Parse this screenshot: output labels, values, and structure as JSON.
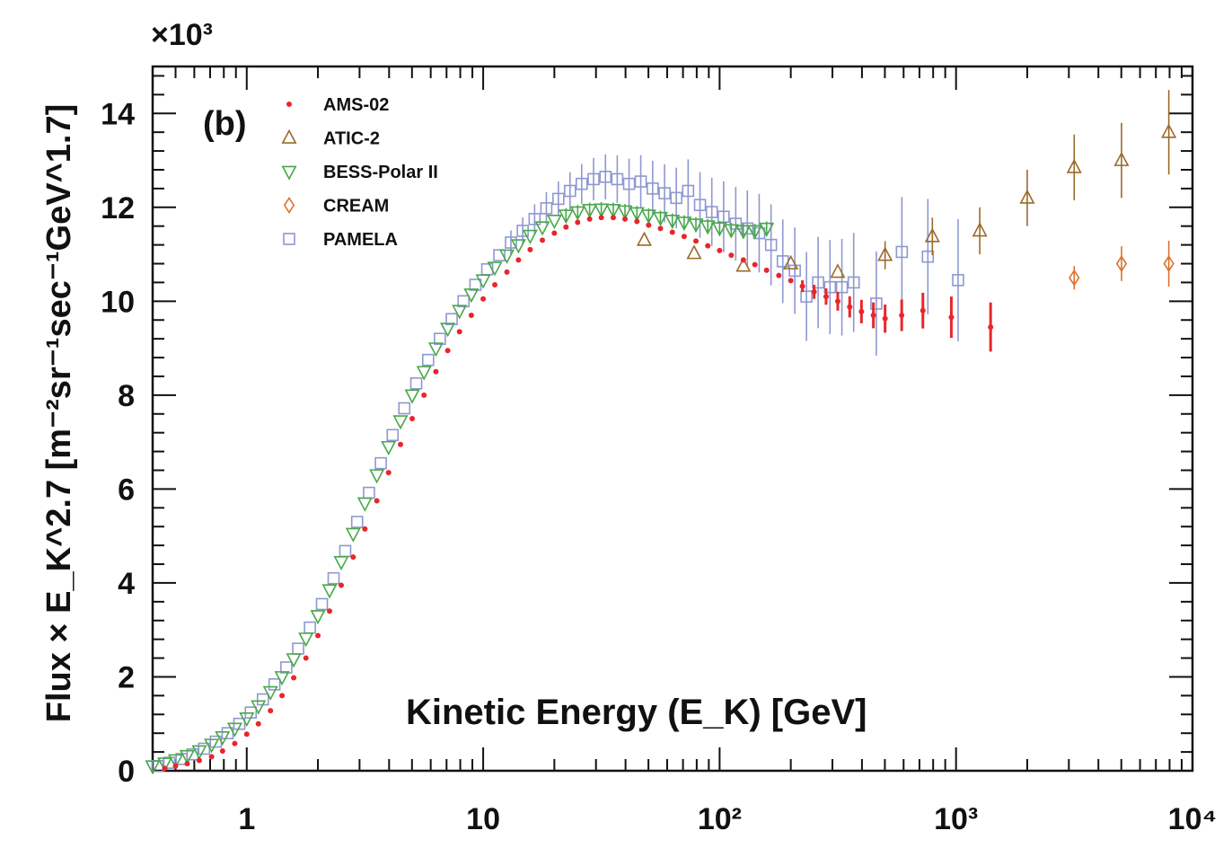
{
  "chart_data": {
    "type": "scatter",
    "panel_label": "(b)",
    "multiplier_label": "×10³",
    "xlabel": "Kinetic Energy (E_K)  [GeV]",
    "ylabel": "Flux × E_K^2.7  [m⁻²sr⁻¹sec⁻¹GeV^1.7]",
    "xscale": "log",
    "xlim": [
      0.4,
      10000
    ],
    "ylim": [
      0,
      15
    ],
    "x_ticks": [
      {
        "value": 1,
        "label": "1"
      },
      {
        "value": 10,
        "label": "10"
      },
      {
        "value": 100,
        "label": "10²"
      },
      {
        "value": 1000,
        "label": "10³"
      },
      {
        "value": 10000,
        "label": "10⁴"
      }
    ],
    "y_ticks": [
      0,
      2,
      4,
      6,
      8,
      10,
      12,
      14
    ],
    "legend_position": "top-left",
    "series": [
      {
        "name": "AMS-02",
        "marker": "dot",
        "color": "#e8262b",
        "points": [
          {
            "x": 0.45,
            "y": 0.05
          },
          {
            "x": 0.5,
            "y": 0.1
          },
          {
            "x": 0.56,
            "y": 0.15
          },
          {
            "x": 0.63,
            "y": 0.22
          },
          {
            "x": 0.71,
            "y": 0.3
          },
          {
            "x": 0.79,
            "y": 0.42
          },
          {
            "x": 0.89,
            "y": 0.58
          },
          {
            "x": 1.0,
            "y": 0.78
          },
          {
            "x": 1.12,
            "y": 1.0
          },
          {
            "x": 1.26,
            "y": 1.28
          },
          {
            "x": 1.41,
            "y": 1.6
          },
          {
            "x": 1.58,
            "y": 1.98
          },
          {
            "x": 1.78,
            "y": 2.4
          },
          {
            "x": 2.0,
            "y": 2.88
          },
          {
            "x": 2.24,
            "y": 3.4
          },
          {
            "x": 2.51,
            "y": 3.95
          },
          {
            "x": 2.82,
            "y": 4.55
          },
          {
            "x": 3.16,
            "y": 5.15
          },
          {
            "x": 3.55,
            "y": 5.75
          },
          {
            "x": 3.98,
            "y": 6.35
          },
          {
            "x": 4.47,
            "y": 6.95
          },
          {
            "x": 5.01,
            "y": 7.5
          },
          {
            "x": 5.62,
            "y": 8.0
          },
          {
            "x": 6.31,
            "y": 8.5
          },
          {
            "x": 7.08,
            "y": 8.95
          },
          {
            "x": 7.94,
            "y": 9.35
          },
          {
            "x": 8.91,
            "y": 9.7
          },
          {
            "x": 10.0,
            "y": 10.05
          },
          {
            "x": 11.2,
            "y": 10.35
          },
          {
            "x": 12.6,
            "y": 10.62
          },
          {
            "x": 14.1,
            "y": 10.88
          },
          {
            "x": 15.8,
            "y": 11.1
          },
          {
            "x": 17.8,
            "y": 11.3
          },
          {
            "x": 20.0,
            "y": 11.45
          },
          {
            "x": 22.4,
            "y": 11.58
          },
          {
            "x": 25.1,
            "y": 11.68
          },
          {
            "x": 28.2,
            "y": 11.75
          },
          {
            "x": 31.6,
            "y": 11.78
          },
          {
            "x": 35.5,
            "y": 11.78
          },
          {
            "x": 39.8,
            "y": 11.75
          },
          {
            "x": 44.7,
            "y": 11.7
          },
          {
            "x": 50.1,
            "y": 11.62
          },
          {
            "x": 56.2,
            "y": 11.55
          },
          {
            "x": 63.1,
            "y": 11.47
          },
          {
            "x": 70.8,
            "y": 11.38
          },
          {
            "x": 79.4,
            "y": 11.28
          },
          {
            "x": 89.1,
            "y": 11.18
          },
          {
            "x": 100,
            "y": 11.08
          },
          {
            "x": 112,
            "y": 10.98
          },
          {
            "x": 126,
            "y": 10.88
          },
          {
            "x": 141,
            "y": 10.78
          },
          {
            "x": 158,
            "y": 10.66
          },
          {
            "x": 178,
            "y": 10.55
          },
          {
            "x": 200,
            "y": 10.44
          },
          {
            "x": 224,
            "y": 10.32
          },
          {
            "x": 251,
            "y": 10.2
          },
          {
            "x": 282,
            "y": 10.1
          },
          {
            "x": 316,
            "y": 10.0
          },
          {
            "x": 355,
            "y": 9.88
          },
          {
            "x": 398,
            "y": 9.78
          },
          {
            "x": 447,
            "y": 9.7
          },
          {
            "x": 501,
            "y": 9.63
          },
          {
            "x": 589,
            "y": 9.7
          },
          {
            "x": 724,
            "y": 9.8
          },
          {
            "x": 955,
            "y": 9.66
          },
          {
            "x": 1400,
            "y": 9.45
          }
        ]
      },
      {
        "name": "ATIC-2",
        "marker": "triangle-up",
        "color": "#9b6a2a",
        "points": [
          {
            "x": 48,
            "y": 11.3
          },
          {
            "x": 78,
            "y": 11.02
          },
          {
            "x": 126,
            "y": 10.75
          },
          {
            "x": 200,
            "y": 10.8
          },
          {
            "x": 316,
            "y": 10.62
          },
          {
            "x": 501,
            "y": 10.98
          },
          {
            "x": 794,
            "y": 11.38
          },
          {
            "x": 1260,
            "y": 11.5
          },
          {
            "x": 2000,
            "y": 12.2
          },
          {
            "x": 3160,
            "y": 12.85
          },
          {
            "x": 5010,
            "y": 13.0
          },
          {
            "x": 7940,
            "y": 13.6
          }
        ]
      },
      {
        "name": "BESS-Polar II",
        "marker": "triangle-down",
        "color": "#48a848",
        "points": [
          {
            "x": 0.4,
            "y": 0.1
          },
          {
            "x": 0.45,
            "y": 0.16
          },
          {
            "x": 0.5,
            "y": 0.23
          },
          {
            "x": 0.56,
            "y": 0.32
          },
          {
            "x": 0.63,
            "y": 0.42
          },
          {
            "x": 0.71,
            "y": 0.56
          },
          {
            "x": 0.79,
            "y": 0.72
          },
          {
            "x": 0.89,
            "y": 0.9
          },
          {
            "x": 1.0,
            "y": 1.12
          },
          {
            "x": 1.12,
            "y": 1.38
          },
          {
            "x": 1.26,
            "y": 1.68
          },
          {
            "x": 1.41,
            "y": 2.0
          },
          {
            "x": 1.58,
            "y": 2.38
          },
          {
            "x": 1.78,
            "y": 2.82
          },
          {
            "x": 2.0,
            "y": 3.3
          },
          {
            "x": 2.24,
            "y": 3.85
          },
          {
            "x": 2.51,
            "y": 4.45
          },
          {
            "x": 2.82,
            "y": 5.05
          },
          {
            "x": 3.16,
            "y": 5.7
          },
          {
            "x": 3.55,
            "y": 6.3
          },
          {
            "x": 3.98,
            "y": 6.9
          },
          {
            "x": 4.47,
            "y": 7.45
          },
          {
            "x": 5.01,
            "y": 8.0
          },
          {
            "x": 5.62,
            "y": 8.5
          },
          {
            "x": 6.31,
            "y": 9.0
          },
          {
            "x": 7.08,
            "y": 9.42
          },
          {
            "x": 7.94,
            "y": 9.8
          },
          {
            "x": 8.91,
            "y": 10.15
          },
          {
            "x": 10.0,
            "y": 10.45
          },
          {
            "x": 11.2,
            "y": 10.72
          },
          {
            "x": 12.6,
            "y": 10.98
          },
          {
            "x": 14.1,
            "y": 11.2
          },
          {
            "x": 15.8,
            "y": 11.4
          },
          {
            "x": 17.8,
            "y": 11.58
          },
          {
            "x": 20.0,
            "y": 11.72
          },
          {
            "x": 22.4,
            "y": 11.83
          },
          {
            "x": 25.1,
            "y": 11.9
          },
          {
            "x": 28.2,
            "y": 11.95
          },
          {
            "x": 31.6,
            "y": 11.96
          },
          {
            "x": 35.5,
            "y": 11.95
          },
          {
            "x": 39.8,
            "y": 11.92
          },
          {
            "x": 44.7,
            "y": 11.88
          },
          {
            "x": 50.1,
            "y": 11.83
          },
          {
            "x": 56.2,
            "y": 11.78
          },
          {
            "x": 63.1,
            "y": 11.72
          },
          {
            "x": 70.8,
            "y": 11.68
          },
          {
            "x": 79.4,
            "y": 11.64
          },
          {
            "x": 89.1,
            "y": 11.6
          },
          {
            "x": 100,
            "y": 11.56
          },
          {
            "x": 112,
            "y": 11.52
          },
          {
            "x": 126,
            "y": 11.5
          },
          {
            "x": 141,
            "y": 11.5
          },
          {
            "x": 158,
            "y": 11.55
          }
        ]
      },
      {
        "name": "CREAM",
        "marker": "diamond",
        "color": "#d9722e",
        "points": [
          {
            "x": 3160,
            "y": 10.5
          },
          {
            "x": 5010,
            "y": 10.8
          },
          {
            "x": 7940,
            "y": 10.8
          }
        ]
      },
      {
        "name": "PAMELA",
        "marker": "square",
        "color": "#8e98d0",
        "points": [
          {
            "x": 0.42,
            "y": 0.1
          },
          {
            "x": 0.47,
            "y": 0.17
          },
          {
            "x": 0.53,
            "y": 0.25
          },
          {
            "x": 0.59,
            "y": 0.35
          },
          {
            "x": 0.66,
            "y": 0.47
          },
          {
            "x": 0.74,
            "y": 0.62
          },
          {
            "x": 0.83,
            "y": 0.8
          },
          {
            "x": 0.93,
            "y": 1.0
          },
          {
            "x": 1.04,
            "y": 1.24
          },
          {
            "x": 1.17,
            "y": 1.52
          },
          {
            "x": 1.31,
            "y": 1.84
          },
          {
            "x": 1.47,
            "y": 2.2
          },
          {
            "x": 1.65,
            "y": 2.6
          },
          {
            "x": 1.85,
            "y": 3.05
          },
          {
            "x": 2.08,
            "y": 3.55
          },
          {
            "x": 2.33,
            "y": 4.1
          },
          {
            "x": 2.61,
            "y": 4.68
          },
          {
            "x": 2.93,
            "y": 5.3
          },
          {
            "x": 3.29,
            "y": 5.92
          },
          {
            "x": 3.69,
            "y": 6.55
          },
          {
            "x": 4.14,
            "y": 7.15
          },
          {
            "x": 4.64,
            "y": 7.72
          },
          {
            "x": 5.21,
            "y": 8.25
          },
          {
            "x": 5.85,
            "y": 8.75
          },
          {
            "x": 6.56,
            "y": 9.2
          },
          {
            "x": 7.36,
            "y": 9.62
          },
          {
            "x": 8.26,
            "y": 10.0
          },
          {
            "x": 9.27,
            "y": 10.35
          },
          {
            "x": 10.4,
            "y": 10.68
          },
          {
            "x": 11.7,
            "y": 10.98
          },
          {
            "x": 13.1,
            "y": 11.25
          },
          {
            "x": 14.7,
            "y": 11.5
          },
          {
            "x": 16.5,
            "y": 11.75
          },
          {
            "x": 18.5,
            "y": 11.98
          },
          {
            "x": 20.8,
            "y": 12.18
          },
          {
            "x": 23.3,
            "y": 12.35
          },
          {
            "x": 26.1,
            "y": 12.5
          },
          {
            "x": 29.3,
            "y": 12.6
          },
          {
            "x": 32.9,
            "y": 12.65
          },
          {
            "x": 36.9,
            "y": 12.6
          },
          {
            "x": 41.4,
            "y": 12.5
          },
          {
            "x": 46.4,
            "y": 12.55
          },
          {
            "x": 52.1,
            "y": 12.4
          },
          {
            "x": 58.5,
            "y": 12.3
          },
          {
            "x": 65.6,
            "y": 12.2
          },
          {
            "x": 73.6,
            "y": 12.35
          },
          {
            "x": 82.6,
            "y": 12.05
          },
          {
            "x": 92.7,
            "y": 11.9
          },
          {
            "x": 104,
            "y": 11.8
          },
          {
            "x": 117,
            "y": 11.65
          },
          {
            "x": 131,
            "y": 11.55
          },
          {
            "x": 147,
            "y": 11.45
          },
          {
            "x": 165,
            "y": 11.2
          },
          {
            "x": 185,
            "y": 10.85
          },
          {
            "x": 208,
            "y": 10.65
          },
          {
            "x": 233,
            "y": 10.1
          },
          {
            "x": 261,
            "y": 10.4
          },
          {
            "x": 293,
            "y": 10.3
          },
          {
            "x": 329,
            "y": 10.3
          },
          {
            "x": 369,
            "y": 10.4
          },
          {
            "x": 460,
            "y": 9.95
          },
          {
            "x": 590,
            "y": 11.05
          },
          {
            "x": 760,
            "y": 10.95
          },
          {
            "x": 1020,
            "y": 10.45
          }
        ]
      }
    ]
  }
}
